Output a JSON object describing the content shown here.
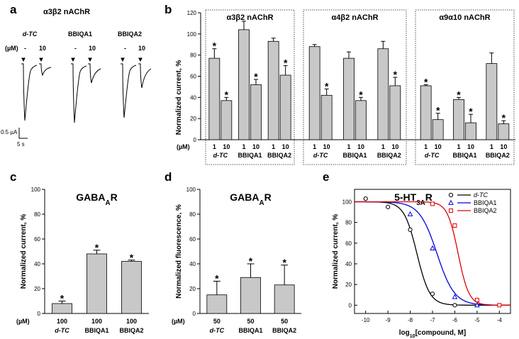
{
  "panels": {
    "a": {
      "label": "a",
      "title": "α3β2 nAChR",
      "unit_label": "(µM)",
      "groups": [
        {
          "name": "d-TC",
          "dose_low": "-",
          "dose_high": "10"
        },
        {
          "name": "BBIQA1",
          "dose_low": "-",
          "dose_high": "10"
        },
        {
          "name": "BBIQA2",
          "dose_low": "-",
          "dose_high": "10"
        }
      ],
      "scale_current": "0.5 µA",
      "scale_time": "5 s"
    },
    "b_label": "b",
    "c_label": "c",
    "d_label": "d",
    "e_label": "e"
  },
  "chart_data": [
    {
      "id": "b",
      "type": "bar",
      "ylabel": "Normalized current, %",
      "ylim": [
        0,
        120
      ],
      "yticks": [
        0,
        20,
        40,
        60,
        80,
        100,
        120
      ],
      "unit_label": "(µM)",
      "subpanels": [
        {
          "title": "α3β2 nAChR",
          "groups": [
            {
              "name": "d-TC",
              "doses": [
                "1",
                "10"
              ],
              "values": [
                77,
                37
              ],
              "errors": [
                9,
                3
              ],
              "significant": [
                true,
                true
              ]
            },
            {
              "name": "BBIQA1",
              "doses": [
                "1",
                "10"
              ],
              "values": [
                104,
                52
              ],
              "errors": [
                8,
                5
              ],
              "significant": [
                false,
                true
              ]
            },
            {
              "name": "BBIQA2",
              "doses": [
                "1",
                "10"
              ],
              "values": [
                93,
                61
              ],
              "errors": [
                3,
                9
              ],
              "significant": [
                false,
                true
              ]
            }
          ]
        },
        {
          "title": "α4β2 nAChR",
          "groups": [
            {
              "name": "d-TC",
              "doses": [
                "1",
                "10"
              ],
              "values": [
                88,
                42
              ],
              "errors": [
                2,
                6
              ],
              "significant": [
                false,
                true
              ]
            },
            {
              "name": "BBIQA1",
              "doses": [
                "1",
                "10"
              ],
              "values": [
                77,
                37
              ],
              "errors": [
                6,
                3
              ],
              "significant": [
                false,
                true
              ]
            },
            {
              "name": "BBIQA2",
              "doses": [
                "1",
                "10"
              ],
              "values": [
                86,
                51
              ],
              "errors": [
                7,
                8
              ],
              "significant": [
                false,
                true
              ]
            }
          ]
        },
        {
          "title": "α9α10 nAChR",
          "groups": [
            {
              "name": "d-TC",
              "doses": [
                "1",
                "10"
              ],
              "values": [
                51,
                19
              ],
              "errors": [
                1,
                6
              ],
              "significant": [
                true,
                true
              ]
            },
            {
              "name": "BBIQA1",
              "doses": [
                "1",
                "10"
              ],
              "values": [
                38,
                16
              ],
              "errors": [
                2,
                8
              ],
              "significant": [
                true,
                true
              ]
            },
            {
              "name": "BBIQA2",
              "doses": [
                "1",
                "10"
              ],
              "values": [
                72,
                15
              ],
              "errors": [
                10,
                3
              ],
              "significant": [
                false,
                true
              ]
            }
          ]
        }
      ]
    },
    {
      "id": "c",
      "type": "bar",
      "title": "GABA",
      "title_sub": "A",
      "title_suffix": "R",
      "ylabel": "Normalized current, %",
      "ylim": [
        0,
        100
      ],
      "yticks": [
        0,
        20,
        40,
        60,
        80,
        100
      ],
      "unit_label": "(µM)",
      "categories": [
        "d-TC",
        "BBIQA1",
        "BBIQA2"
      ],
      "doses": [
        "100",
        "100",
        "100"
      ],
      "values": [
        8,
        48,
        42
      ],
      "errors": [
        2,
        3,
        1
      ],
      "significant": [
        true,
        true,
        true
      ]
    },
    {
      "id": "d",
      "type": "bar",
      "title": "GABA",
      "title_sub": "A",
      "title_suffix": "R",
      "ylabel": "Normalized fluorescence, %",
      "ylim": [
        0,
        100
      ],
      "yticks": [
        0,
        20,
        40,
        60,
        80,
        100
      ],
      "unit_label": "(µM)",
      "categories": [
        "d-TC",
        "BBIQA1",
        "BBIQA2"
      ],
      "doses": [
        "50",
        "50",
        "50"
      ],
      "values": [
        15,
        29,
        23
      ],
      "errors": [
        11,
        11,
        16
      ],
      "significant": [
        true,
        true,
        true
      ]
    },
    {
      "id": "e",
      "type": "line",
      "title": "5-HT",
      "title_sub": "3A",
      "title_suffix": "R",
      "ylabel": "Normalized current, %",
      "xlabel": "log",
      "xlabel_sub": "10",
      "xlabel_suffix": "[compound, M]",
      "xlim": [
        -10.5,
        -3.5
      ],
      "ylim": [
        -8,
        112
      ],
      "xticks": [
        -10,
        -9,
        -8,
        -7,
        -6,
        -5,
        -4
      ],
      "yticks": [
        0,
        20,
        40,
        60,
        80,
        100
      ],
      "series": [
        {
          "name": "d-TC",
          "color": "#000000",
          "marker": "circle",
          "ic50_log": -7.7,
          "hill": 1.5,
          "x": [
            -10,
            -9,
            -8,
            -7,
            -6
          ],
          "y": [
            103,
            95,
            73,
            11,
            0
          ]
        },
        {
          "name": "BBIQA1",
          "color": "#0000dd",
          "marker": "triangle",
          "ic50_log": -6.8,
          "hill": 1.1,
          "x": [
            -8,
            -7,
            -6,
            -5
          ],
          "y": [
            88,
            55,
            8,
            0
          ]
        },
        {
          "name": "BBIQA2",
          "color": "#e00000",
          "marker": "square",
          "ic50_log": -5.85,
          "hill": 1.8,
          "x": [
            -7,
            -6,
            -5,
            -4
          ],
          "y": [
            98,
            77,
            5,
            0
          ]
        }
      ]
    }
  ]
}
